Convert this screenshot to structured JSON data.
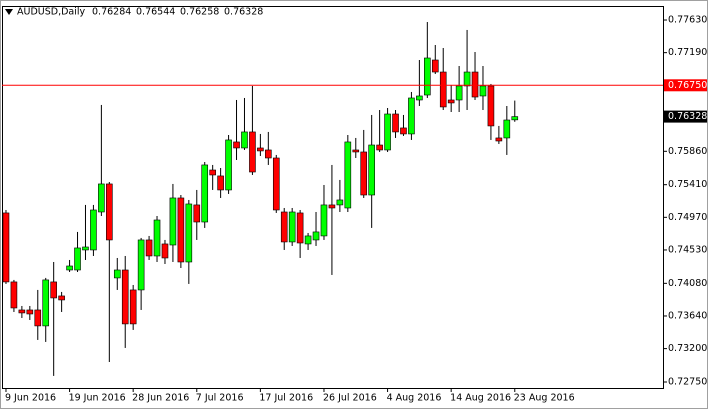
{
  "chart_data": {
    "type": "candlestick",
    "title": "AUDUSD,Daily",
    "categories": [
      "9 Jun 2016",
      null,
      null,
      null,
      null,
      null,
      null,
      null,
      "19 Jun 2016",
      null,
      null,
      null,
      null,
      null,
      null,
      null,
      "28 Jun 2016",
      null,
      null,
      null,
      null,
      null,
      null,
      null,
      "7 Jul 2016",
      null,
      null,
      null,
      null,
      null,
      null,
      null,
      "17 Jul 2016",
      null,
      null,
      null,
      null,
      null,
      null,
      null,
      "26 Jul 2016",
      null,
      null,
      null,
      null,
      null,
      null,
      null,
      "4 Aug 2016",
      null,
      null,
      null,
      null,
      null,
      null,
      null,
      "14 Aug 2016",
      null,
      null,
      null,
      null,
      null,
      null,
      null,
      "23 Aug 2016"
    ],
    "open": [
      0.75029,
      0.74099,
      0.73721,
      0.73721,
      0.73721,
      0.73506,
      0.74099,
      0.7391,
      0.7426,
      0.7426,
      0.7453,
      0.7453,
      0.75042,
      0.7542,
      0.74153,
      0.7426,
      0.73991,
      0.73991,
      0.74665,
      0.74449,
      0.74611,
      0.74597,
      0.75231,
      0.74368,
      0.75137,
      0.74907,
      0.75608,
      0.75528,
      0.75339,
      0.75986,
      0.75905,
      0.76121,
      0.75905,
      0.75878,
      0.7577,
      0.75042,
      0.74638,
      0.75029,
      0.74611,
      0.74665,
      0.74719,
      0.75137,
      0.75137,
      0.75096,
      0.75878,
      0.75851,
      0.75271,
      0.75945,
      0.75878,
      0.76363,
      0.76175,
      0.76094,
      0.76552,
      0.76619,
      0.77091,
      0.76929,
      0.76552,
      0.76552,
      0.76741,
      0.76929,
      0.76606,
      0.76741,
      0.7604,
      0.7604,
      0.76284
    ],
    "high": [
      0.75069,
      0.74126,
      0.73775,
      0.73775,
      0.73991,
      0.74153,
      0.74368,
      0.73964,
      0.74395,
      0.74773,
      0.75137,
      0.75137,
      0.76485,
      0.75447,
      0.74422,
      0.74449,
      0.74058,
      0.74692,
      0.74719,
      0.74988,
      0.74665,
      0.7542,
      0.75271,
      0.75204,
      0.75339,
      0.75716,
      0.75676,
      0.75635,
      0.7608,
      0.76552,
      0.76579,
      0.76741,
      0.76094,
      0.76121,
      0.75811,
      0.75096,
      0.75096,
      0.75069,
      0.74759,
      0.75042,
      0.75406,
      0.75676,
      0.75474,
      0.7608,
      0.7604,
      0.76148,
      0.7635,
      0.76417,
      0.76444,
      0.76417,
      0.7635,
      0.7666,
      0.77091,
      0.77603,
      0.77293,
      0.77253,
      0.76754,
      0.7701,
      0.77496,
      0.77199,
      0.7701,
      0.76768,
      0.76202,
      0.76471,
      0.76544
    ],
    "low": [
      0.74072,
      0.73694,
      0.73613,
      0.73586,
      0.73317,
      0.7329,
      0.72832,
      0.73694,
      0.74233,
      0.74233,
      0.74395,
      0.74449,
      0.74988,
      0.7302,
      0.73991,
      0.73209,
      0.73452,
      0.73721,
      0.74395,
      0.74368,
      0.74341,
      0.74368,
      0.74287,
      0.74072,
      0.74665,
      0.74827,
      0.75339,
      0.75231,
      0.75285,
      0.75743,
      0.75878,
      0.75541,
      0.75797,
      0.75676,
      0.75029,
      0.7453,
      0.74584,
      0.74422,
      0.7453,
      0.74584,
      0.74665,
      0.74193,
      0.75042,
      0.75042,
      0.7577,
      0.75231,
      0.74827,
      0.75851,
      0.75851,
      0.7604,
      0.76067,
      0.76013,
      0.76471,
      0.76579,
      0.76902,
      0.76417,
      0.7639,
      0.7639,
      0.76417,
      0.76552,
      0.76417,
      0.76013,
      0.75959,
      0.75811,
      0.76258
    ],
    "close": [
      0.74099,
      0.73748,
      0.73681,
      0.73667,
      0.73506,
      0.74126,
      0.73883,
      0.73856,
      0.74314,
      0.74557,
      0.7457,
      0.75069,
      0.7542,
      0.74665,
      0.7426,
      0.73533,
      0.73533,
      0.74665,
      0.74449,
      0.74934,
      0.74422,
      0.75231,
      0.74368,
      0.7515,
      0.74907,
      0.75676,
      0.75541,
      0.75339,
      0.76013,
      0.75905,
      0.76121,
      0.75581,
      0.75865,
      0.7577,
      0.75069,
      0.74638,
      0.75042,
      0.74624,
      0.74719,
      0.74773,
      0.75137,
      0.75096,
      0.75204,
      0.75986,
      0.75851,
      0.75271,
      0.75945,
      0.75878,
      0.76363,
      0.76121,
      0.76094,
      0.76579,
      0.76606,
      0.77118,
      0.76929,
      0.76458,
      0.76512,
      0.76741,
      0.76929,
      0.76592,
      0.76741,
      0.76202,
      0.75999,
      0.76282,
      0.76328
    ],
    "up_color": "#00ff00",
    "down_color": "#ff0000",
    "ylim": [
      0.72669,
      0.77792
    ],
    "yticks": [
      {
        "value": 0.7763,
        "label": "0.77630"
      },
      {
        "value": 0.7719,
        "label": "0.77190"
      },
      {
        "value": 0.7586,
        "label": "0.75860"
      },
      {
        "value": 0.7541,
        "label": "0.75410"
      },
      {
        "value": 0.7497,
        "label": "0.74970"
      },
      {
        "value": 0.7453,
        "label": "0.74530"
      },
      {
        "value": 0.7408,
        "label": "0.74080"
      },
      {
        "value": 0.7364,
        "label": "0.73640"
      },
      {
        "value": 0.732,
        "label": "0.73200"
      },
      {
        "value": 0.7275,
        "label": "0.72750"
      }
    ],
    "level_line": {
      "value": 0.7675,
      "label": "0.76750",
      "color": "#ff0000"
    }
  }
}
